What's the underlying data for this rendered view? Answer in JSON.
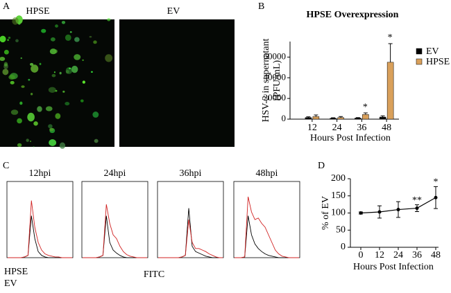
{
  "chart_data": [
    {
      "type": "image",
      "panel": "A",
      "labels": [
        "HPSE",
        "EV"
      ]
    },
    {
      "type": "bar",
      "panel": "B",
      "title": "HPSE Overexpression",
      "ylabel": "HSV-2 in supernatant (PFU/mL)",
      "xlabel": "Hours Post Infection",
      "categories": [
        "12",
        "24",
        "36",
        "48"
      ],
      "series": [
        {
          "name": "EV",
          "color": "#000000",
          "values": [
            1500,
            800,
            1000,
            2000
          ],
          "errors": [
            800,
            500,
            500,
            1200
          ]
        },
        {
          "name": "HPSE",
          "color": "#d9a05b",
          "values": [
            2500,
            1500,
            4500,
            55000
          ],
          "errors": [
            1500,
            1000,
            1500,
            18000
          ]
        }
      ],
      "ylim": [
        0,
        75000
      ],
      "yticks": [
        0,
        20000,
        40000,
        60000
      ],
      "annotations": [
        {
          "category": "36",
          "text": "*"
        },
        {
          "category": "48",
          "text": "*"
        }
      ]
    },
    {
      "type": "flow",
      "panel": "C",
      "xlabel": "FITC",
      "ylim": [
        0,
        100
      ],
      "series": [
        {
          "name": "HPSE",
          "color": "#d02020"
        },
        {
          "name": "EV",
          "color": "#000000"
        }
      ],
      "panels": [
        {
          "title": "12hpi",
          "values": [
            [
              0,
              0,
              0,
              0,
              0,
              1,
              3,
              75,
              40,
              20,
              10,
              5,
              3,
              2,
              1,
              1,
              0,
              0,
              0,
              0
            ],
            [
              0,
              0,
              0,
              0,
              0,
              1,
              3,
              55,
              25,
              8,
              3,
              1,
              0,
              0,
              0,
              0,
              0,
              0,
              0,
              0
            ]
          ]
        },
        {
          "title": "24hpi",
          "values": [
            [
              0,
              0,
              0,
              0,
              0,
              1,
              3,
              70,
              45,
              30,
              25,
              15,
              8,
              4,
              2,
              1,
              0,
              0,
              0,
              0
            ],
            [
              0,
              0,
              0,
              0,
              0,
              1,
              3,
              55,
              20,
              10,
              6,
              3,
              1,
              0,
              0,
              0,
              0,
              0,
              0,
              0
            ]
          ]
        },
        {
          "title": "36hpi",
          "values": [
            [
              0,
              0,
              0,
              0,
              0,
              0,
              0,
              1,
              3,
              50,
              20,
              12,
              12,
              10,
              8,
              5,
              3,
              1,
              0,
              0
            ],
            [
              0,
              0,
              0,
              0,
              0,
              0,
              0,
              1,
              3,
              65,
              15,
              8,
              6,
              4,
              2,
              1,
              0,
              0,
              0,
              0
            ]
          ]
        },
        {
          "title": "48hpi",
          "values": [
            [
              0,
              0,
              0,
              1,
              80,
              60,
              50,
              52,
              45,
              40,
              30,
              20,
              10,
              5,
              2,
              1,
              0,
              0,
              0,
              0
            ],
            [
              0,
              0,
              0,
              1,
              55,
              30,
              18,
              12,
              8,
              5,
              3,
              2,
              1,
              0,
              0,
              0,
              0,
              0,
              0,
              0
            ]
          ]
        }
      ]
    },
    {
      "type": "line",
      "panel": "D",
      "ylabel": "% of EV",
      "xlabel": "Hours Post Infection",
      "x": [
        0,
        12,
        24,
        36,
        48
      ],
      "values": [
        100,
        103,
        110,
        114,
        145
      ],
      "errors": [
        3,
        18,
        23,
        10,
        32
      ],
      "color": "#000000",
      "xlim": [
        0,
        48
      ],
      "xticks": [
        0,
        12,
        24,
        36,
        48
      ],
      "ylim": [
        0,
        200
      ],
      "yticks": [
        0,
        50,
        100,
        150,
        200
      ],
      "annotations": [
        {
          "x": 36,
          "text": "**"
        },
        {
          "x": 48,
          "text": "*"
        }
      ]
    }
  ]
}
